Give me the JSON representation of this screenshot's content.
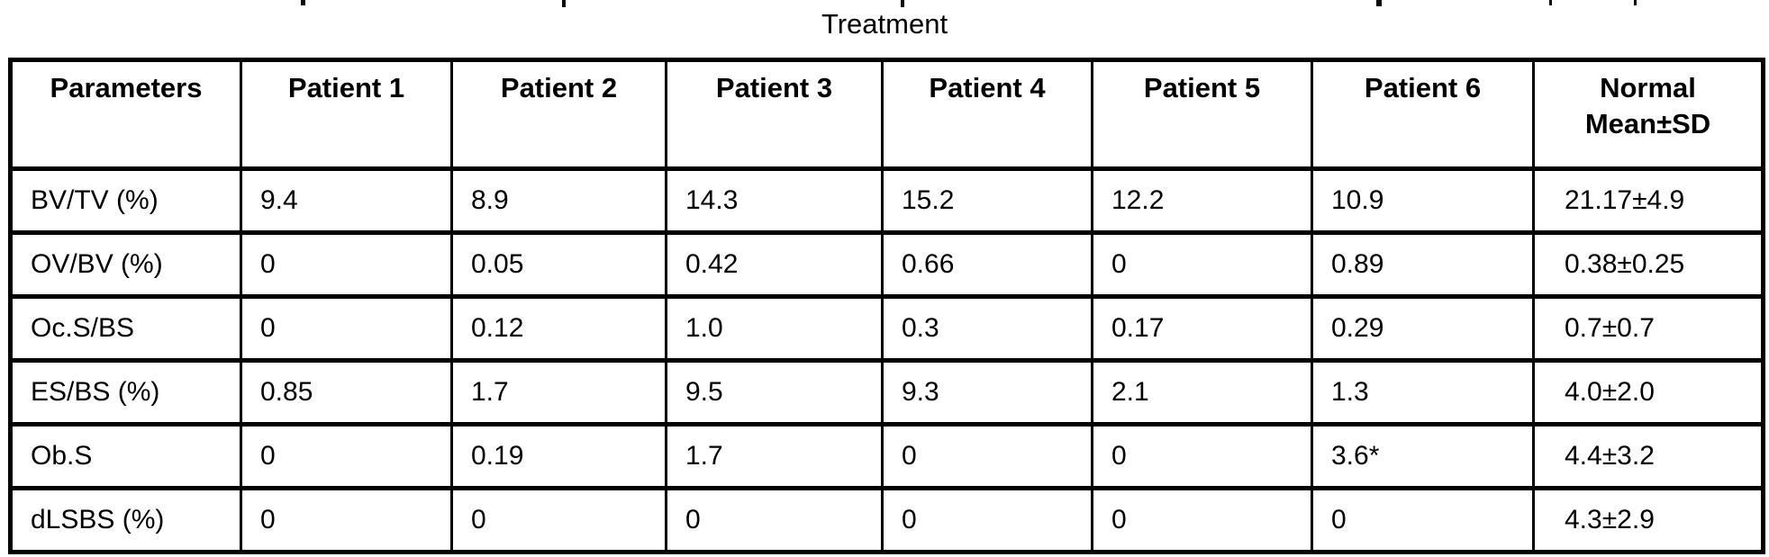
{
  "title_above_table": "Treatment",
  "table": {
    "headers": [
      {
        "lines": [
          "Parameters"
        ]
      },
      {
        "lines": [
          "Patient 1"
        ]
      },
      {
        "lines": [
          "Patient 2"
        ]
      },
      {
        "lines": [
          "Patient 3"
        ]
      },
      {
        "lines": [
          "Patient 4"
        ]
      },
      {
        "lines": [
          "Patient 5"
        ]
      },
      {
        "lines": [
          "Patient 6"
        ]
      },
      {
        "lines": [
          "Normal",
          "Mean±SD"
        ]
      }
    ],
    "rows": [
      {
        "parameter": "BV/TV (%)",
        "values": [
          "9.4",
          "8.9",
          "14.3",
          "15.2",
          "12.2",
          "10.9",
          "21.17±4.9"
        ]
      },
      {
        "parameter": "OV/BV (%)",
        "values": [
          "0",
          "0.05",
          "0.42",
          "0.66",
          "0",
          "0.89",
          "0.38±0.25"
        ]
      },
      {
        "parameter": "Oc.S/BS",
        "values": [
          "0",
          "0.12",
          "1.0",
          "0.3",
          "0.17",
          "0.29",
          "0.7±0.7"
        ]
      },
      {
        "parameter": "ES/BS (%)",
        "values": [
          "0.85",
          "1.7",
          "9.5",
          "9.3",
          "2.1",
          "1.3",
          "4.0±2.0"
        ]
      },
      {
        "parameter": "Ob.S",
        "values": [
          "0",
          "0.19",
          "1.7",
          "0",
          "0",
          "3.6*",
          "4.4±3.2"
        ]
      },
      {
        "parameter": "dLSBS (%)",
        "values": [
          "0",
          "0",
          "0",
          "0",
          "0",
          "0",
          "4.3±2.9"
        ]
      }
    ],
    "text_color": "#000000",
    "border_color": "#000000",
    "background_color": "#ffffff"
  }
}
